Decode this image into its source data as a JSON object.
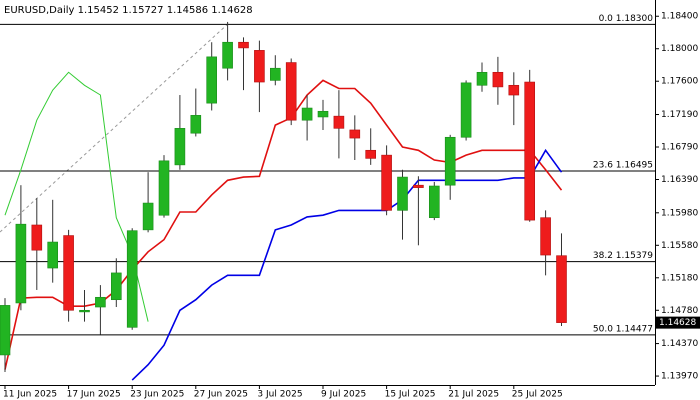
{
  "chart_data": {
    "type": "candlestick",
    "title": "EURUSD,Daily",
    "categories": [
      "11 Jun 2025",
      null,
      null,
      null,
      "17 Jun 2025",
      null,
      null,
      null,
      "23 Jun 2025",
      null,
      null,
      null,
      "27 Jun 2025",
      null,
      null,
      null,
      "3 Jul 2025",
      null,
      null,
      null,
      "9 Jul 2025",
      null,
      null,
      null,
      "15 Jul 2025",
      null,
      null,
      null,
      "21 Jul 2025",
      null,
      null,
      null,
      "25 Jul 2025",
      null,
      null,
      null
    ],
    "open": [
      1.1423,
      1.1487,
      1.1583,
      1.153,
      1.157,
      1.1476,
      1.1482,
      1.1491,
      1.1457,
      1.1577,
      1.1595,
      1.1657,
      1.1696,
      1.1733,
      1.1776,
      1.1808,
      1.1798,
      1.1761,
      1.1783,
      1.1712,
      1.1716,
      1.1717,
      1.17,
      1.1675,
      1.1669,
      1.1601,
      1.1632,
      1.1592,
      1.1632,
      1.1691,
      1.1755,
      1.1771,
      1.1755,
      1.1759,
      1.1592,
      1.15452
    ],
    "high": [
      1.1493,
      1.1632,
      1.1616,
      1.1614,
      1.1577,
      1.1503,
      1.1509,
      1.1542,
      1.1579,
      1.1648,
      1.1669,
      1.1743,
      1.1751,
      1.1808,
      1.1833,
      1.1814,
      1.181,
      1.1792,
      1.1788,
      1.1743,
      1.1737,
      1.1749,
      1.1718,
      1.1702,
      1.1681,
      1.1651,
      1.1643,
      1.1636,
      1.1694,
      1.1761,
      1.1783,
      1.179,
      1.1771,
      1.1774,
      1.1601,
      1.15727
    ],
    "low": [
      1.1402,
      1.1478,
      1.1503,
      1.1512,
      1.1464,
      1.1464,
      1.1448,
      1.1482,
      1.1454,
      1.1574,
      1.1592,
      1.1651,
      1.1692,
      1.1724,
      1.1761,
      1.1749,
      1.1722,
      1.1755,
      1.1706,
      1.1687,
      1.17,
      1.1665,
      1.1663,
      1.1657,
      1.1595,
      1.1565,
      1.1558,
      1.1589,
      1.1614,
      1.1687,
      1.1747,
      1.1731,
      1.1706,
      1.1587,
      1.1521,
      1.14586
    ],
    "close": [
      1.1484,
      1.1584,
      1.1552,
      1.1562,
      1.1478,
      1.1478,
      1.1494,
      1.1524,
      1.1576,
      1.161,
      1.1662,
      1.1702,
      1.1718,
      1.179,
      1.1808,
      1.1801,
      1.1759,
      1.1776,
      1.1712,
      1.1727,
      1.1723,
      1.1702,
      1.169,
      1.1665,
      1.1601,
      1.1642,
      1.1629,
      1.1631,
      1.1691,
      1.1758,
      1.1771,
      1.1753,
      1.1743,
      1.1589,
      1.1546,
      1.14628
    ],
    "up_color": "#22b422",
    "down_color": "#ee1c1c",
    "series": [
      {
        "color": "#e01010",
        "values": [
          1.1405,
          1.1493,
          1.1494,
          1.1494,
          1.1483,
          1.1483,
          1.1487,
          1.1503,
          1.1528,
          1.155,
          1.1565,
          1.1599,
          1.1599,
          1.162,
          1.1638,
          1.1642,
          1.1643,
          1.1706,
          1.1715,
          1.1743,
          1.1761,
          1.1751,
          1.1751,
          1.1733,
          1.1706,
          1.1679,
          1.1675,
          1.1663,
          1.166,
          1.1669,
          1.1675,
          1.1675,
          1.1675,
          1.1675,
          1.1651,
          1.1626
        ]
      },
      {
        "color": "#0000e6",
        "values": [
          null,
          null,
          null,
          null,
          null,
          null,
          null,
          null,
          1.1392,
          1.1411,
          1.1435,
          1.1478,
          1.1491,
          1.1509,
          1.1521,
          1.1521,
          1.1521,
          1.1577,
          1.1583,
          1.1593,
          1.1595,
          1.1601,
          1.1601,
          1.1601,
          1.1601,
          1.1614,
          1.1638,
          1.1638,
          1.1638,
          1.1638,
          1.1638,
          1.1638,
          1.1641,
          1.1641,
          1.1675,
          1.1648
        ]
      },
      {
        "color": "#33cc33",
        "values": [
          1.1595,
          1.1651,
          1.1712,
          1.1749,
          1.1771,
          1.1755,
          1.1743,
          1.1592,
          1.1546,
          1.1464,
          null,
          null,
          null,
          null,
          null,
          null,
          null,
          null,
          null,
          null,
          null,
          null,
          null,
          null,
          null,
          null,
          null,
          null,
          null,
          null,
          null,
          null,
          null,
          null,
          null,
          null
        ]
      }
    ],
    "fib_levels": [
      {
        "label": "0.0 1.18300",
        "value": 1.183
      },
      {
        "label": "23.6 1.16495",
        "value": 1.16495
      },
      {
        "label": "38.2 1.15379",
        "value": 1.15379
      },
      {
        "label": "50.0 1.14477",
        "value": 1.14477
      }
    ],
    "ylim": [
      1.1386,
      1.186
    ],
    "yticks": [
      {
        "value": 1.184,
        "label": "1.18400"
      },
      {
        "value": 1.18,
        "label": "1.18000"
      },
      {
        "value": 1.176,
        "label": "1.17600"
      },
      {
        "value": 1.1719,
        "label": "1.17190"
      },
      {
        "value": 1.1679,
        "label": "1.16790"
      },
      {
        "value": 1.1639,
        "label": "1.16390"
      },
      {
        "value": 1.1598,
        "label": "1.15980"
      },
      {
        "value": 1.1558,
        "label": "1.15580"
      },
      {
        "value": 1.1518,
        "label": "1.15180"
      },
      {
        "value": 1.1478,
        "label": "1.14780"
      },
      {
        "value": 1.1437,
        "label": "1.14370"
      },
      {
        "value": 1.1397,
        "label": "1.13970"
      }
    ]
  }
}
